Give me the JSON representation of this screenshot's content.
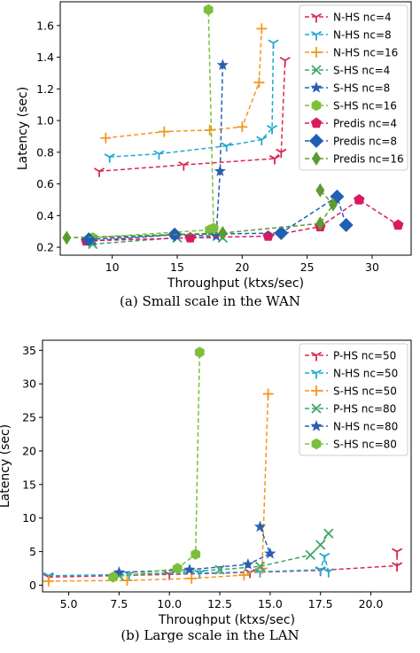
{
  "chart_data": [
    {
      "type": "line",
      "caption": "(a) Small scale in the WAN",
      "xlabel": "Throughput (ktxs/sec)",
      "ylabel": "Latency (sec)",
      "xlim": [
        6,
        33
      ],
      "ylim": [
        0.15,
        1.75
      ],
      "xticks": [
        10,
        15,
        20,
        25,
        30
      ],
      "yticks": [
        0.2,
        0.4,
        0.6,
        0.8,
        1.0,
        1.2,
        1.4,
        1.6
      ],
      "ytick_labels": [
        "0.2",
        "0.4",
        "0.6",
        "0.8",
        "1.0",
        "1.2",
        "1.4",
        "1.6"
      ],
      "legend_position": "top-right",
      "series": [
        {
          "name": "N-HS nc=4",
          "color": "#d62a4f",
          "marker": "tri",
          "x": [
            9.0,
            15.5,
            22.5,
            23.0,
            23.3
          ],
          "y": [
            0.68,
            0.72,
            0.76,
            0.8,
            1.38
          ]
        },
        {
          "name": "N-HS nc=8",
          "color": "#22a9cf",
          "marker": "tri",
          "x": [
            9.8,
            13.6,
            18.8,
            21.5,
            22.3,
            22.4
          ],
          "y": [
            0.77,
            0.79,
            0.84,
            0.88,
            0.95,
            1.49
          ]
        },
        {
          "name": "N-HS nc=16",
          "color": "#f5961f",
          "marker": "plus",
          "x": [
            9.5,
            14.0,
            17.5,
            20.0,
            21.3,
            21.5
          ],
          "y": [
            0.89,
            0.93,
            0.94,
            0.96,
            1.24,
            1.58
          ]
        },
        {
          "name": "S-HS nc=4",
          "color": "#3fa567",
          "marker": "x",
          "x": [
            8.5,
            15.0,
            18.5
          ],
          "y": [
            0.22,
            0.26,
            0.26
          ]
        },
        {
          "name": "S-HS nc=8",
          "color": "#2b5eb0",
          "marker": "star",
          "x": [
            8.5,
            14.8,
            18.0,
            18.3,
            18.5
          ],
          "y": [
            0.24,
            0.28,
            0.27,
            0.68,
            1.35
          ]
        },
        {
          "name": "S-HS nc=16",
          "color": "#7dbf3a",
          "marker": "hex",
          "x": [
            8.5,
            17.5,
            17.8,
            17.4
          ],
          "y": [
            0.26,
            0.31,
            0.32,
            1.7
          ]
        },
        {
          "name": "Predis nc=4",
          "color": "#d81b60",
          "marker": "pentagon",
          "x": [
            8.0,
            16.0,
            22.0,
            26.0,
            29.0,
            32.0
          ],
          "y": [
            0.24,
            0.26,
            0.27,
            0.33,
            0.5,
            0.34
          ]
        },
        {
          "name": "Predis nc=8",
          "color": "#1f5fb4",
          "marker": "diamond",
          "x": [
            8.2,
            14.8,
            23.0,
            27.3,
            28.0
          ],
          "y": [
            0.25,
            0.28,
            0.29,
            0.52,
            0.34
          ]
        },
        {
          "name": "Predis nc=16",
          "color": "#5b9b30",
          "marker": "thin_diamond",
          "x": [
            6.5,
            18.5,
            26.0,
            27.0,
            26.0
          ],
          "y": [
            0.26,
            0.29,
            0.35,
            0.47,
            0.56
          ]
        }
      ]
    },
    {
      "type": "line",
      "caption": "(b) Large scale in the LAN",
      "xlabel": "Throughput (ktxs/sec)",
      "ylabel": "Latency (sec)",
      "xlim": [
        3.7,
        22.0
      ],
      "ylim": [
        -1.0,
        36.5
      ],
      "xticks": [
        5.0,
        7.5,
        10.0,
        12.5,
        15.0,
        17.5,
        20.0
      ],
      "xtick_labels": [
        "5.0",
        "7.5",
        "10.0",
        "12.5",
        "15.0",
        "17.5",
        "20.0"
      ],
      "yticks": [
        0,
        5,
        10,
        15,
        20,
        25,
        30,
        35
      ],
      "legend_position": "top-right",
      "series": [
        {
          "name": "P-HS nc=50",
          "color": "#d62a4f",
          "marker": "tri",
          "x": [
            4.0,
            10.0,
            14.0,
            17.5,
            21.3,
            21.3
          ],
          "y": [
            1.2,
            1.6,
            1.9,
            2.2,
            2.9,
            5.0
          ]
        },
        {
          "name": "N-HS nc=50",
          "color": "#22a9cf",
          "marker": "tri",
          "x": [
            4.0,
            8.0,
            11.5,
            14.5,
            17.5,
            17.7,
            17.9
          ],
          "y": [
            1.4,
            1.6,
            1.8,
            2.0,
            2.3,
            4.3,
            2.0
          ]
        },
        {
          "name": "S-HS nc=50",
          "color": "#f5961f",
          "marker": "plus",
          "x": [
            4.0,
            7.9,
            11.1,
            13.7,
            14.6,
            14.9
          ],
          "y": [
            0.6,
            0.7,
            1.0,
            1.5,
            2.5,
            28.5
          ]
        },
        {
          "name": "P-HS nc=80",
          "color": "#3fa567",
          "marker": "x",
          "x": [
            7.5,
            12.5,
            14.5,
            17.0,
            17.5,
            17.9
          ],
          "y": [
            1.4,
            2.3,
            2.8,
            4.5,
            6.0,
            7.7
          ]
        },
        {
          "name": "N-HS nc=80",
          "color": "#2b5eb0",
          "marker": "star",
          "x": [
            7.5,
            11.0,
            13.9,
            15.0,
            14.5
          ],
          "y": [
            1.9,
            2.3,
            3.1,
            4.7,
            8.7
          ]
        },
        {
          "name": "S-HS nc=80",
          "color": "#7dbf3a",
          "marker": "hex",
          "x": [
            7.2,
            10.4,
            11.3,
            11.5
          ],
          "y": [
            1.2,
            2.5,
            4.6,
            34.7
          ]
        }
      ]
    }
  ]
}
